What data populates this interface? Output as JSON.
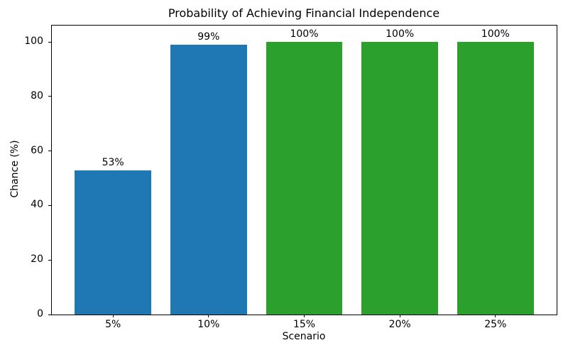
{
  "chart_data": {
    "type": "bar",
    "title": "Probability of Achieving Financial Independence",
    "xlabel": "Scenario",
    "ylabel": "Chance (%)",
    "categories": [
      "5%",
      "10%",
      "15%",
      "20%",
      "25%"
    ],
    "values": [
      53,
      99,
      100,
      100,
      100
    ],
    "bar_labels": [
      "53%",
      "99%",
      "100%",
      "100%",
      "100%"
    ],
    "bar_colors": [
      "#1f77b4",
      "#1f77b4",
      "#2ca02c",
      "#2ca02c",
      "#2ca02c"
    ],
    "yticks": [
      0,
      20,
      40,
      60,
      80,
      100
    ],
    "ylim": [
      0,
      106
    ],
    "grid": false,
    "legend": "none",
    "background_color": "#ffffff",
    "spine_color": "#000000"
  }
}
